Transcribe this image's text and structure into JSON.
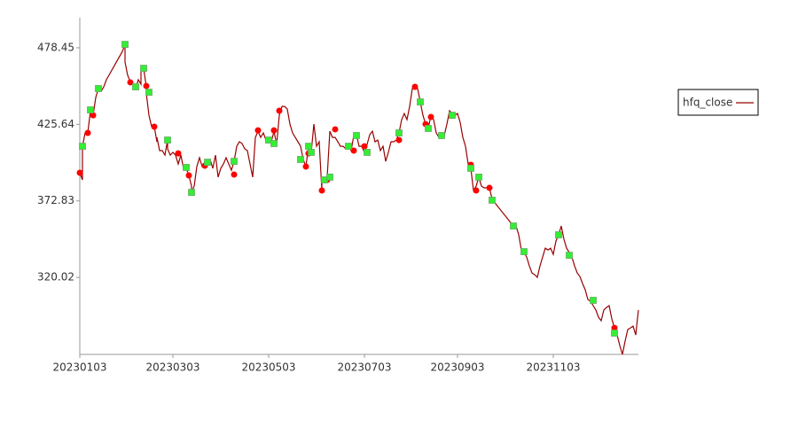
{
  "chart_data": {
    "type": "line",
    "series": [
      {
        "name": "hfq_close",
        "color": "#990000",
        "x": [
          0,
          1,
          1,
          2,
          3,
          4,
          5,
          6,
          7,
          8,
          9,
          10,
          16,
          17,
          17,
          18,
          19,
          20,
          21,
          22,
          23,
          23,
          24,
          25,
          25,
          26,
          27,
          28,
          29,
          29,
          30,
          31,
          32,
          33,
          33,
          34,
          35,
          36,
          37,
          38,
          39,
          40,
          41,
          42,
          42,
          43,
          44,
          45,
          46,
          47,
          48,
          49,
          50,
          51,
          52,
          53,
          54,
          55,
          56,
          57,
          58,
          59,
          60,
          61,
          62,
          63,
          64,
          65,
          66,
          67,
          68,
          69,
          70,
          71,
          72,
          73,
          74,
          75,
          76,
          77,
          78,
          79,
          80,
          81,
          82,
          83,
          84,
          85,
          86,
          87,
          88,
          89,
          90,
          91,
          91,
          92,
          93,
          94,
          95,
          96,
          97,
          98,
          99,
          100,
          101,
          102,
          103,
          104,
          105,
          106,
          107,
          108,
          109,
          110,
          111,
          112,
          113,
          114,
          115,
          116,
          117,
          118,
          119,
          120,
          121,
          122,
          123,
          124,
          125,
          126,
          127,
          128,
          129,
          130,
          131,
          132,
          133,
          134,
          135,
          136,
          137,
          138,
          139,
          140,
          141,
          142,
          143,
          144,
          145,
          146,
          147,
          148,
          149,
          150,
          151,
          152,
          153,
          154,
          155,
          163,
          164,
          165,
          166,
          167,
          168,
          169,
          170,
          171,
          172,
          173,
          174,
          175,
          176,
          177,
          178,
          179,
          180,
          181,
          182,
          183,
          184,
          185,
          186,
          187,
          188,
          189,
          190,
          191,
          192,
          193,
          194,
          195,
          196,
          197,
          198,
          199,
          200,
          201,
          202,
          203,
          204,
          205,
          206,
          207,
          208,
          209,
          210,
          210
        ],
        "values": [
          392.2,
          387.3,
          410.5,
          419.7,
          419.7,
          435.0,
          431.9,
          444.2,
          450.3,
          448.4,
          451.5,
          456.4,
          475.9,
          480.8,
          468.6,
          459.4,
          455.2,
          453.3,
          450.3,
          456.4,
          453.3,
          462.5,
          464.3,
          451.5,
          447.2,
          431.9,
          424.0,
          424.0,
          413.6,
          416.6,
          407.5,
          407.5,
          404.4,
          414.8,
          408.7,
          404.4,
          406.3,
          404.4,
          398.3,
          404.4,
          395.3,
          395.3,
          390.4,
          383.0,
          378.7,
          383.0,
          396.5,
          402.6,
          396.5,
          398.3,
          399.5,
          401.4,
          395.3,
          404.4,
          389.2,
          395.3,
          398.3,
          402.6,
          398.3,
          394.0,
          400.1,
          410.5,
          413.6,
          412.4,
          408.7,
          407.5,
          398.3,
          389.2,
          416.6,
          420.9,
          416.6,
          419.7,
          414.8,
          413.6,
          413.6,
          420.9,
          411.8,
          431.9,
          438.0,
          438.0,
          436.2,
          425.8,
          419.7,
          416.6,
          413.6,
          410.5,
          401.4,
          396.5,
          410.5,
          406.3,
          425.8,
          410.5,
          413.6,
          380.0,
          386.1,
          387.3,
          389.2,
          420.9,
          416.6,
          416.6,
          413.6,
          410.5,
          410.5,
          408.7,
          410.5,
          407.5,
          417.9,
          418.5,
          410.5,
          410.5,
          406.3,
          411.8,
          418.5,
          420.9,
          413.6,
          414.8,
          407.5,
          410.5,
          400.1,
          406.3,
          413.6,
          413.6,
          414.8,
          419.7,
          428.9,
          433.1,
          428.9,
          438.0,
          450.3,
          451.5,
          450.3,
          441.1,
          431.9,
          425.8,
          422.8,
          431.9,
          428.9,
          419.7,
          416.6,
          419.7,
          417.9,
          425.8,
          435.0,
          433.1,
          431.9,
          433.1,
          427.0,
          416.6,
          410.5,
          398.3,
          395.3,
          380.0,
          383.0,
          389.2,
          383.0,
          381.8,
          381.8,
          381.8,
          373.9,
          355.5,
          355.5,
          349.4,
          339.0,
          337.2,
          334.1,
          328.0,
          323.1,
          321.9,
          320.1,
          328.0,
          334.1,
          340.2,
          339.0,
          340.2,
          335.9,
          345.1,
          349.4,
          355.5,
          346.4,
          340.2,
          337.2,
          334.1,
          328.0,
          323.1,
          320.7,
          315.8,
          311.5,
          304.8,
          303.6,
          300.5,
          297.5,
          292.6,
          290.1,
          297.5,
          299.3,
          300.5,
          291.4,
          285.2,
          280.3,
          273.0,
          266.9,
          276.1,
          284.0,
          285.2,
          286.4,
          280.3,
          297.5,
          297.5
        ]
      }
    ],
    "markers": [
      {
        "shape": "circle",
        "color": "#ff0000",
        "x": [
          0,
          3,
          5,
          19,
          25,
          28,
          37,
          41,
          47,
          58,
          67,
          73,
          75,
          85,
          86,
          91,
          93,
          96,
          103,
          107,
          120,
          126,
          130,
          132,
          147,
          149,
          154,
          201
        ],
        "values": [
          392.2,
          419.7,
          431.9,
          454.6,
          452.1,
          424.0,
          405.6,
          390.4,
          397.1,
          391.0,
          421.5,
          421.5,
          435.0,
          396.5,
          405.6,
          380.0,
          387.3,
          422.2,
          407.5,
          410.5,
          414.8,
          451.5,
          425.8,
          430.7,
          397.7,
          380.0,
          381.8,
          285.2
        ]
      },
      {
        "shape": "square",
        "color": "#33ee33",
        "x": [
          1,
          4,
          7,
          17,
          21,
          24,
          26,
          33,
          40,
          42,
          48,
          58,
          71,
          73,
          83,
          86,
          87,
          92,
          94,
          101,
          104,
          108,
          120,
          128,
          131,
          136,
          140,
          147,
          150,
          155,
          163,
          167,
          180,
          184,
          193,
          201
        ],
        "values": [
          410.5,
          435.6,
          450.3,
          480.8,
          451.5,
          464.3,
          447.8,
          414.8,
          395.9,
          378.7,
          399.5,
          400.1,
          414.8,
          412.4,
          401.4,
          410.5,
          406.3,
          387.3,
          389.2,
          410.5,
          417.9,
          406.3,
          419.7,
          441.1,
          422.8,
          417.9,
          431.9,
          395.3,
          389.2,
          373.3,
          355.5,
          337.8,
          349.4,
          335.3,
          304.2,
          281.6
        ]
      }
    ],
    "xlim": [
      0,
      210
    ],
    "xticks": [
      {
        "value": 0,
        "label": "20230103"
      },
      {
        "value": 35,
        "label": "20230303"
      },
      {
        "value": 71,
        "label": "20230503"
      },
      {
        "value": 107,
        "label": "20230703"
      },
      {
        "value": 142,
        "label": "20230903"
      },
      {
        "value": 178,
        "label": "20231103"
      }
    ],
    "ylim": [
      266.9,
      499.2
    ],
    "yticks": [
      320.02,
      372.83,
      425.64,
      478.45
    ],
    "grid": false,
    "legend": "right"
  }
}
